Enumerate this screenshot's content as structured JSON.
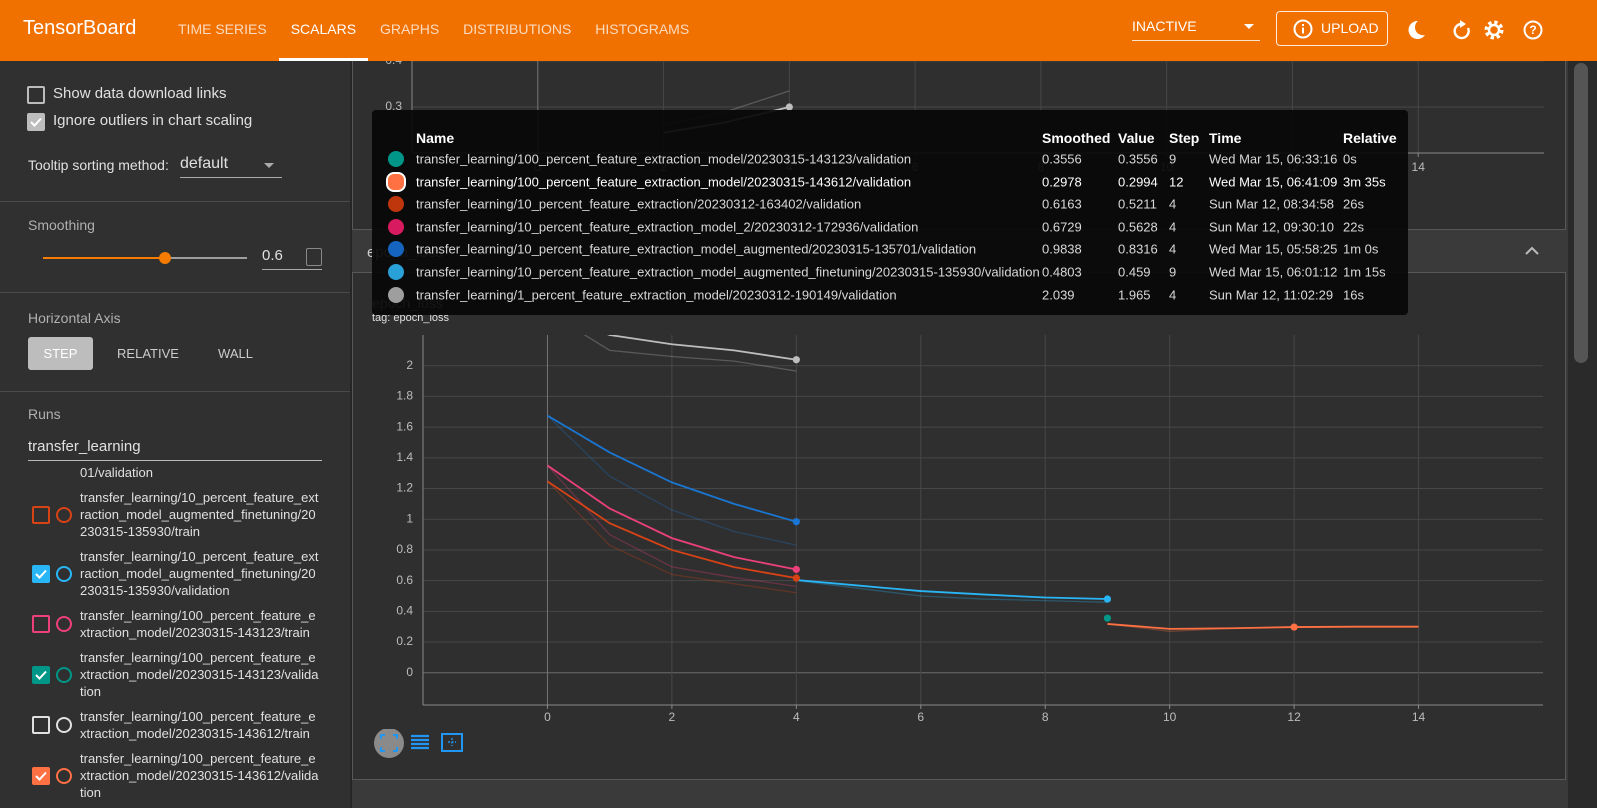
{
  "header": {
    "title": "TensorBoard",
    "tabs": [
      "TIME SERIES",
      "SCALARS",
      "GRAPHS",
      "DISTRIBUTIONS",
      "HISTOGRAMS"
    ],
    "active_tab": 1,
    "run_select": "INACTIVE",
    "upload": "UPLOAD"
  },
  "sidebar": {
    "show_download_links": {
      "label": "Show data download links",
      "checked": false
    },
    "ignore_outliers": {
      "label": "Ignore outliers in chart scaling",
      "checked": true
    },
    "tooltip_sorting": {
      "label": "Tooltip sorting method:",
      "value": "default"
    },
    "smoothing": {
      "label": "Smoothing",
      "value": 0.6
    },
    "horizontal_axis": {
      "label": "Horizontal Axis",
      "options": [
        "STEP",
        "RELATIVE",
        "WALL"
      ],
      "selected": 0
    },
    "runs": {
      "label": "Runs",
      "filter": "transfer_learning",
      "items": [
        {
          "name": "01/validation"
        },
        {
          "name": "transfer_learning/10_percent_feature_extraction_model_augmented_finetuning/20230315-135930/train",
          "checked": false,
          "color": "#d84315"
        },
        {
          "name": "transfer_learning/10_percent_feature_extraction_model_augmented_finetuning/20230315-135930/validation",
          "checked": true,
          "color": "#29b6f6"
        },
        {
          "name": "transfer_learning/100_percent_feature_extraction_model/20230315-143123/train",
          "checked": false,
          "color": "#ec407a"
        },
        {
          "name": "transfer_learning/100_percent_feature_extraction_model/20230315-143123/validation",
          "checked": true,
          "color": "#009688"
        },
        {
          "name": "transfer_learning/100_percent_feature_extraction_model/20230315-143612/train",
          "checked": false,
          "color": "#e0e0e0"
        },
        {
          "name": "transfer_learning/100_percent_feature_extraction_model/20230315-143612/validation",
          "checked": true,
          "color": "#ff7043"
        }
      ]
    }
  },
  "group_title": "epoch_loss",
  "chart_data": [
    {
      "type": "line",
      "xlim": [
        -2,
        16
      ],
      "ylim": [
        0.2,
        0.45
      ],
      "xticks": [
        0,
        2,
        4,
        6,
        8,
        10,
        12,
        14
      ],
      "yticks": [
        0.3,
        0.4
      ],
      "grid": true,
      "series": [
        {
          "color": "#bdbdbd",
          "x": [
            2,
            3,
            4
          ],
          "values": [
            0.244,
            0.267,
            0.3
          ],
          "raw_values": [
            0.26,
            0.29,
            0.335
          ],
          "marker_index": 2
        }
      ]
    },
    {
      "type": "line",
      "title": "epoch_loss",
      "subtitle": "tag: epoch_loss",
      "xlim": [
        -2,
        16
      ],
      "ylim": [
        -0.21,
        2.2
      ],
      "xticks": [
        0,
        2,
        4,
        6,
        8,
        10,
        12,
        14
      ],
      "yticks": [
        0,
        0.2,
        0.4,
        0.6,
        0.8,
        1,
        1.2,
        1.4,
        1.6,
        1.8,
        2
      ],
      "grid": true,
      "series": [
        {
          "color": "#bdbdbd",
          "x": [
            0,
            1,
            2,
            3,
            4
          ],
          "values": [
            2.35,
            2.2,
            2.14,
            2.1,
            2.039
          ],
          "raw_values": [
            2.35,
            2.1,
            2.06,
            2.03,
            1.965
          ],
          "marker_index": 4
        },
        {
          "color": "#1976d2",
          "x": [
            0,
            1,
            2,
            3,
            4
          ],
          "values": [
            1.675,
            1.435,
            1.24,
            1.1,
            0.9838
          ],
          "raw_values": [
            1.675,
            1.28,
            1.06,
            0.92,
            0.8316
          ],
          "marker_index": 4
        },
        {
          "color": "#ec407a",
          "x": [
            0,
            1,
            2,
            3,
            4
          ],
          "values": [
            1.35,
            1.07,
            0.877,
            0.753,
            0.6729
          ],
          "raw_values": [
            1.35,
            0.9,
            0.69,
            0.62,
            0.5628
          ],
          "marker_index": 4
        },
        {
          "color": "#d84315",
          "x": [
            0,
            1,
            2,
            3,
            4
          ],
          "values": [
            1.247,
            0.974,
            0.8,
            0.688,
            0.6163
          ],
          "raw_values": [
            1.247,
            0.83,
            0.64,
            0.58,
            0.5211
          ],
          "marker_index": 4
        },
        {
          "color": "#29b6f6",
          "x": [
            4,
            5,
            6,
            7,
            8,
            9
          ],
          "values": [
            0.604,
            0.568,
            0.532,
            0.51,
            0.49,
            0.4803
          ],
          "raw_values": [
            0.6,
            0.55,
            0.5,
            0.48,
            0.47,
            0.459
          ],
          "marker_index": 5
        },
        {
          "color": "#009688",
          "x": [
            9
          ],
          "values": [
            0.3556
          ],
          "raw_values": [
            0.3556
          ],
          "marker_index": 0
        },
        {
          "color": "#ff7043",
          "x": [
            9,
            10,
            11,
            12,
            13,
            14
          ],
          "values": [
            0.318,
            0.286,
            0.29,
            0.2978,
            0.3,
            0.3
          ],
          "raw_values": [
            0.318,
            0.27,
            0.29,
            0.2994,
            0.3,
            0.3
          ],
          "marker_index": 3
        }
      ]
    }
  ],
  "tooltip": {
    "columns": [
      "Name",
      "Smoothed",
      "Value",
      "Step",
      "Time",
      "Relative"
    ],
    "rows": [
      {
        "color": "#009688",
        "name": "transfer_learning/100_percent_feature_extraction_model/20230315-143123/validation",
        "smoothed": 0.3556,
        "value": 0.3556,
        "step": 9,
        "time": "Wed Mar 15, 06:33:16",
        "relative": "0s"
      },
      {
        "color": "#ff7043",
        "name": "transfer_learning/100_percent_feature_extraction_model/20230315-143612/validation",
        "smoothed": 0.2978,
        "value": 0.2994,
        "step": 12,
        "time": "Wed Mar 15, 06:41:09",
        "relative": "3m 35s",
        "closest": true
      },
      {
        "color": "#bf360c",
        "name": "transfer_learning/10_percent_feature_extraction/20230312-163402/validation",
        "smoothed": 0.6163,
        "value": 0.5211,
        "step": 4,
        "time": "Sun Mar 12, 08:34:58",
        "relative": "26s"
      },
      {
        "color": "#d81b60",
        "name": "transfer_learning/10_percent_feature_extraction_model_2/20230312-172936/validation",
        "smoothed": 0.6729,
        "value": 0.5628,
        "step": 4,
        "time": "Sun Mar 12, 09:30:10",
        "relative": "22s"
      },
      {
        "color": "#1565c0",
        "name": "transfer_learning/10_percent_feature_extraction_model_augmented/20230315-135701/validation",
        "smoothed": 0.9838,
        "value": 0.8316,
        "step": 4,
        "time": "Wed Mar 15, 05:58:25",
        "relative": "1m 0s"
      },
      {
        "color": "#29a0d8",
        "name": "transfer_learning/10_percent_feature_extraction_model_augmented_finetuning/20230315-135930/validation",
        "smoothed": 0.4803,
        "value": 0.459,
        "step": 9,
        "time": "Wed Mar 15, 06:01:12",
        "relative": "1m 15s"
      },
      {
        "color": "#9e9e9e",
        "name": "transfer_learning/1_percent_feature_extraction_model/20230312-190149/validation",
        "smoothed": 2.039,
        "value": 1.965,
        "step": 4,
        "time": "Sun Mar 12, 11:02:29",
        "relative": "16s"
      }
    ]
  }
}
